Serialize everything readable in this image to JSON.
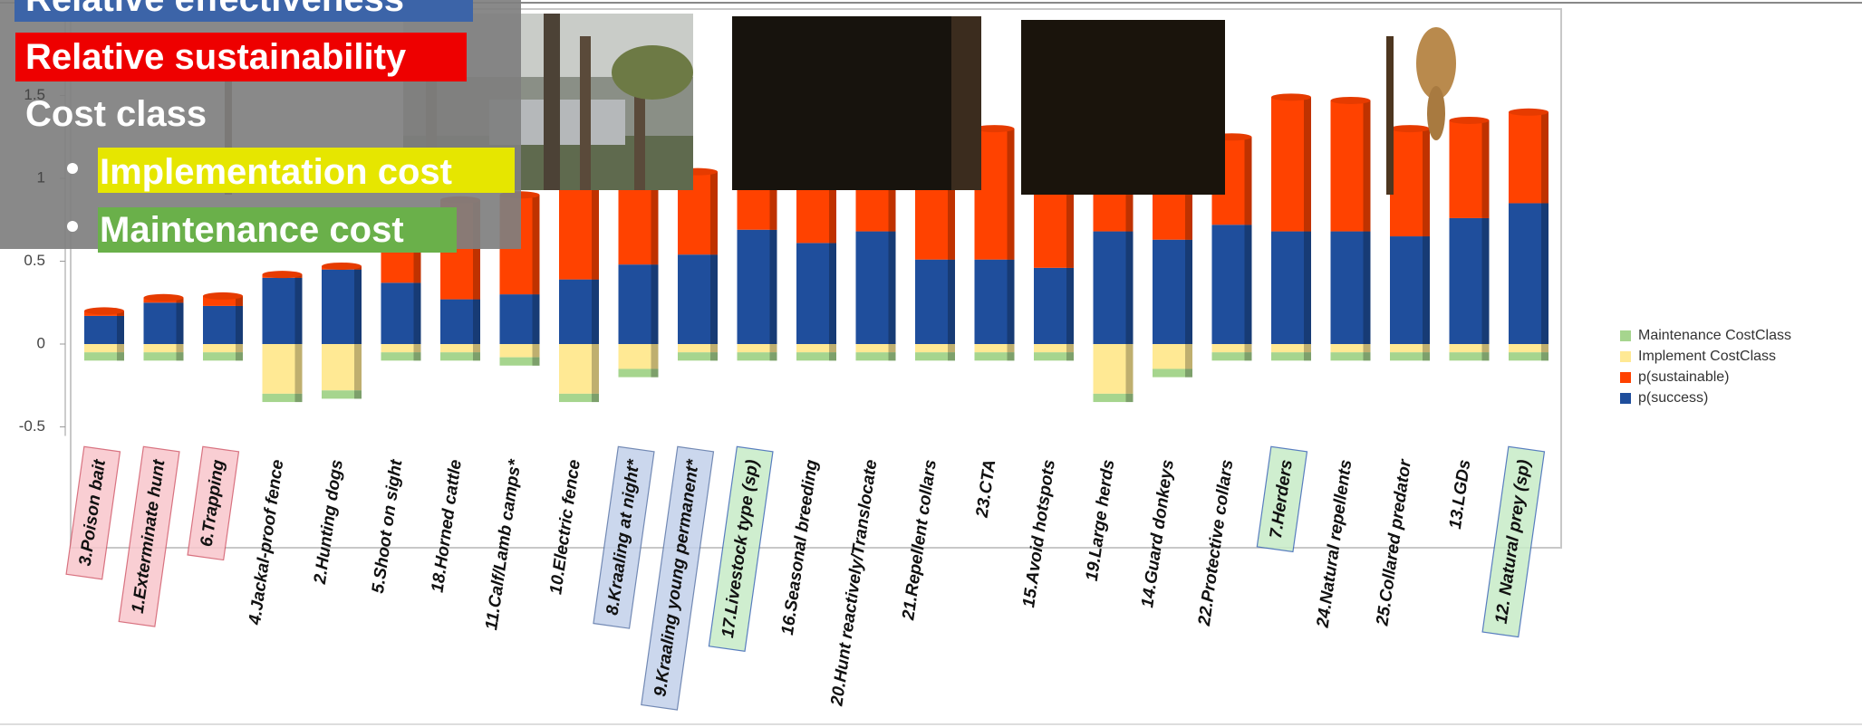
{
  "chart_data": {
    "type": "stacked-bar",
    "categories": [
      "3.Poison bait",
      "1.Exterminate hunt",
      "6.Trapping",
      "4.Jackal-proof fence",
      "2.Hunting dogs",
      "5.Shoot on sight",
      "18.Horned cattle",
      "11.Calf/Lamb camps*",
      "10.Electric fence",
      "8.Kraaling at night*",
      "9.Kraaling young permanent*",
      "17.Livestock type (sp)",
      "16.Seasonal breeding",
      "20.Hunt reactively/Translocate",
      "21.Repellent collars",
      "23.CTA",
      "15.Avoid hotspots",
      "19.Large herds",
      "14.Guard donkeys",
      "22.Protective collars",
      "7.Herders",
      "24.Natural repellents",
      "25.Collared predator",
      "13.LGDs",
      "12. Natural prey (sp)"
    ],
    "series": [
      {
        "name": "p(success)",
        "color": "#1f4e9c",
        "values": [
          0.17,
          0.25,
          0.23,
          0.4,
          0.45,
          0.37,
          0.27,
          0.3,
          0.39,
          0.48,
          0.54,
          0.69,
          0.61,
          0.68,
          0.51,
          0.51,
          0.46,
          0.68,
          0.63,
          0.72,
          0.68,
          0.68,
          0.65,
          0.76,
          0.85
        ]
      },
      {
        "name": "p(sustainable)",
        "color": "#ff4200",
        "values": [
          0.03,
          0.03,
          0.06,
          0.02,
          0.02,
          0.35,
          0.6,
          0.6,
          0.7,
          0.57,
          0.5,
          0.41,
          0.44,
          0.42,
          0.8,
          0.79,
          0.74,
          0.47,
          0.57,
          0.53,
          0.81,
          0.79,
          0.65,
          0.59,
          0.55
        ]
      },
      {
        "name": "Implement CostClass",
        "color": "#ffe994",
        "values": [
          -0.05,
          -0.05,
          -0.05,
          -0.3,
          -0.28,
          -0.05,
          -0.05,
          -0.08,
          -0.3,
          -0.15,
          -0.05,
          -0.05,
          -0.05,
          -0.05,
          -0.05,
          -0.05,
          -0.05,
          -0.3,
          -0.15,
          -0.05,
          -0.05,
          -0.05,
          -0.05,
          -0.05,
          -0.05
        ]
      },
      {
        "name": "Maintenance CostClass",
        "color": "#a6d58e",
        "values": [
          -0.05,
          -0.05,
          -0.05,
          -0.05,
          -0.05,
          -0.05,
          -0.05,
          -0.05,
          -0.05,
          -0.05,
          -0.05,
          -0.05,
          -0.05,
          -0.05,
          -0.05,
          -0.05,
          -0.05,
          -0.05,
          -0.05,
          -0.05,
          -0.05,
          -0.05,
          -0.05,
          -0.05,
          -0.05
        ]
      }
    ],
    "ylim": [
      -0.5,
      1.5
    ],
    "yticks": [
      -0.5,
      0,
      0.5,
      1,
      1.5
    ]
  },
  "overlay": {
    "items": [
      "Relative effectiveness",
      "Relative sustainability",
      "Cost class"
    ],
    "bullets": [
      "Implementation cost",
      "Maintenance cost"
    ]
  }
}
